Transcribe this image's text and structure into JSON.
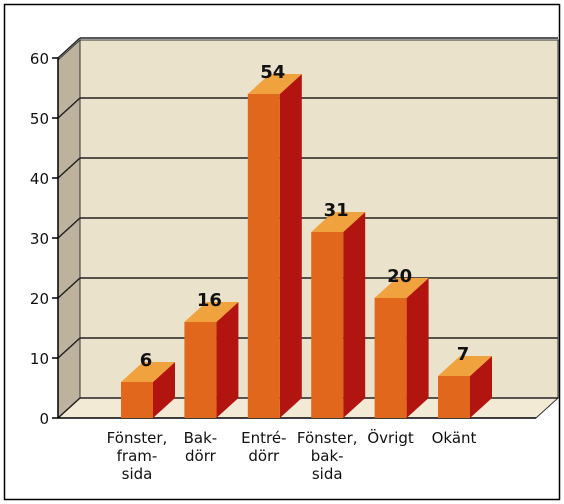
{
  "chart_data": {
    "type": "bar3d",
    "categories": [
      "Fönster,\nfram-\nsida",
      "Bak-\ndörr",
      "Entré-\ndörr",
      "Fönster,\nbak-\nsida",
      "Övrigt",
      "Okänt"
    ],
    "values": [
      6,
      16,
      54,
      31,
      20,
      7
    ],
    "colors": {
      "front": "#e0671c",
      "top": "#f0a23e",
      "side": "#b2150f"
    },
    "ylim": [
      0,
      60
    ],
    "yticks": [
      0,
      10,
      20,
      30,
      40,
      50,
      60
    ],
    "grid": true
  }
}
